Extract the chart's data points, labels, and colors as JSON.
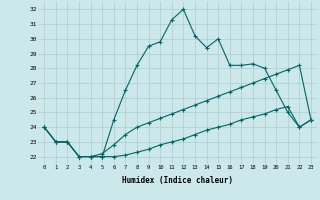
{
  "xlabel": "Humidex (Indice chaleur)",
  "background_color": "#cce8ea",
  "grid_color": "#aacccc",
  "line_color": "#006666",
  "x_ticks": [
    0,
    1,
    2,
    3,
    4,
    5,
    6,
    7,
    8,
    9,
    10,
    11,
    12,
    13,
    14,
    15,
    16,
    17,
    18,
    19,
    20,
    21,
    22,
    23
  ],
  "y_ticks": [
    22,
    23,
    24,
    25,
    26,
    27,
    28,
    29,
    30,
    31,
    32
  ],
  "xlim": [
    -0.5,
    23.5
  ],
  "ylim": [
    21.5,
    32.5
  ],
  "series1": [
    24.0,
    23.0,
    23.0,
    22.0,
    22.0,
    22.0,
    24.5,
    26.5,
    28.2,
    29.5,
    29.8,
    31.3,
    32.0,
    30.2,
    29.4,
    30.0,
    28.2,
    28.2,
    28.3,
    28.0,
    26.5,
    25.0,
    24.0,
    24.5
  ],
  "series2": [
    24.0,
    23.0,
    23.0,
    22.0,
    22.0,
    22.2,
    22.8,
    23.5,
    24.0,
    24.3,
    24.6,
    24.9,
    25.2,
    25.5,
    25.8,
    26.1,
    26.4,
    26.7,
    27.0,
    27.3,
    27.6,
    27.9,
    28.2,
    24.5
  ],
  "series3": [
    24.0,
    23.0,
    23.0,
    22.0,
    22.0,
    22.0,
    22.0,
    22.1,
    22.3,
    22.5,
    22.8,
    23.0,
    23.2,
    23.5,
    23.8,
    24.0,
    24.2,
    24.5,
    24.7,
    24.9,
    25.2,
    25.4,
    24.0,
    24.5
  ]
}
